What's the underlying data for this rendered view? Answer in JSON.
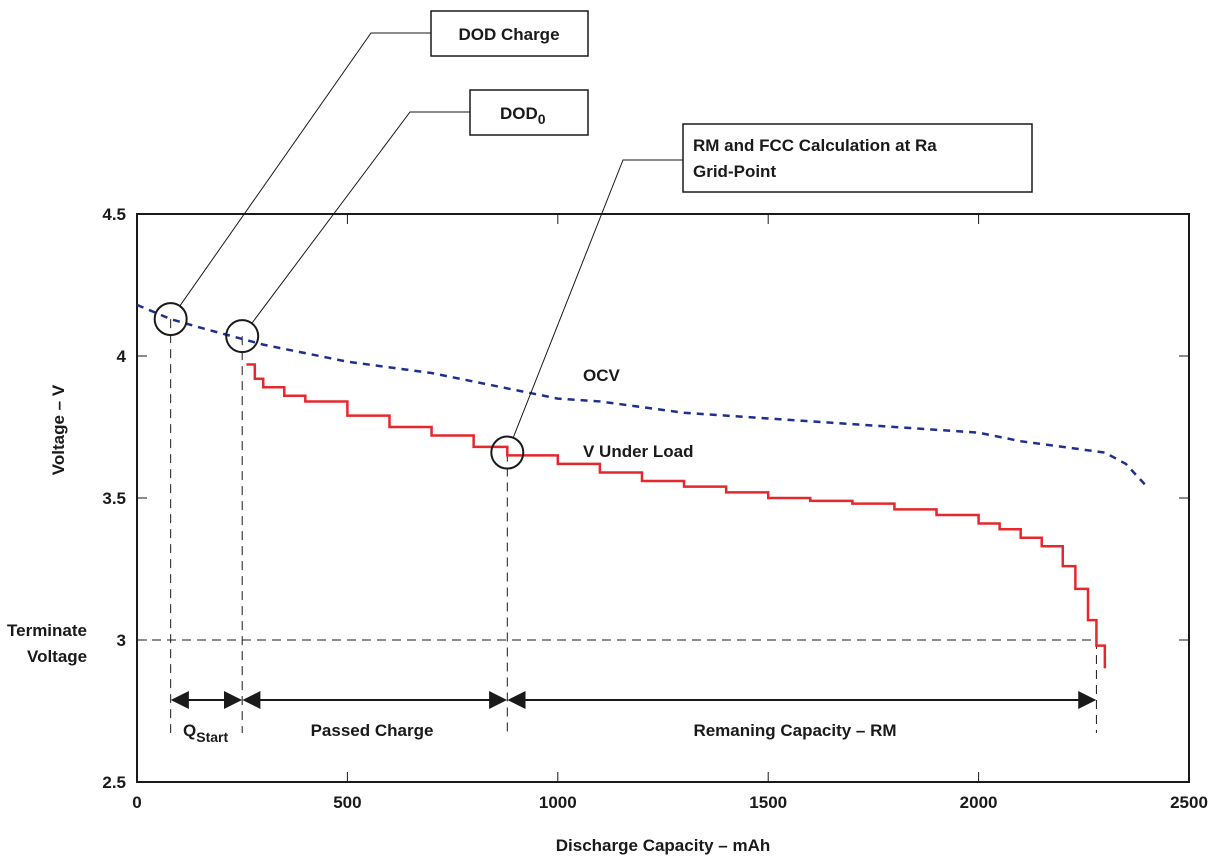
{
  "chart_data": {
    "type": "line",
    "xlabel": "Discharge Capacity – mAh",
    "ylabel": "Voltage – V",
    "xlim": [
      0,
      2500
    ],
    "ylim": [
      2.5,
      4.5
    ],
    "xticks": [
      "0",
      "500",
      "1000",
      "1500",
      "2000",
      "2500"
    ],
    "yticks": [
      "2.5",
      "3",
      "3.5",
      "4",
      "4.5"
    ],
    "grid": false,
    "series": [
      {
        "name": "OCV",
        "color": "#1f2f8f",
        "style": "dashed",
        "x": [
          0,
          80,
          150,
          250,
          300,
          400,
          500,
          600,
          700,
          800,
          900,
          1000,
          1100,
          1200,
          1300,
          1400,
          1500,
          1600,
          1700,
          1800,
          1900,
          2000,
          2100,
          2200,
          2300,
          2350,
          2400
        ],
        "y": [
          4.18,
          4.13,
          4.1,
          4.06,
          4.04,
          4.01,
          3.98,
          3.96,
          3.94,
          3.91,
          3.88,
          3.85,
          3.84,
          3.82,
          3.8,
          3.79,
          3.78,
          3.77,
          3.76,
          3.75,
          3.74,
          3.73,
          3.7,
          3.68,
          3.66,
          3.62,
          3.54
        ]
      },
      {
        "name": "V Under Load",
        "color": "#e4282d",
        "style": "solid",
        "x": [
          260,
          280,
          300,
          350,
          400,
          500,
          600,
          700,
          800,
          880,
          1000,
          1100,
          1200,
          1300,
          1400,
          1500,
          1600,
          1700,
          1800,
          1900,
          2000,
          2050,
          2100,
          2150,
          2200,
          2230,
          2260,
          2280,
          2300
        ],
        "y": [
          3.97,
          3.92,
          3.89,
          3.86,
          3.84,
          3.79,
          3.75,
          3.72,
          3.68,
          3.65,
          3.62,
          3.59,
          3.56,
          3.54,
          3.52,
          3.5,
          3.49,
          3.48,
          3.46,
          3.44,
          3.41,
          3.39,
          3.36,
          3.33,
          3.26,
          3.18,
          3.07,
          2.98,
          2.9
        ]
      }
    ],
    "reference_lines": {
      "terminate_voltage": 3.0,
      "q_start_x": 80,
      "dod0_x": 250,
      "ra_x": 880,
      "end_x": 2280
    },
    "callouts": [
      {
        "id": "dod-charge",
        "text": "DOD Charge",
        "x": 80,
        "y": 4.13
      },
      {
        "id": "dod0",
        "text": "DOD",
        "sub": "0",
        "x": 250,
        "y": 4.07
      },
      {
        "id": "ra-point",
        "line1": "RM and FCC Calculation at Ra",
        "line2": "Grid-Point",
        "x": 880,
        "y": 3.66
      }
    ],
    "annotations": {
      "ocv_label": "OCV",
      "load_label": "V Under Load",
      "terminate_line1": "Terminate",
      "terminate_line2": "Voltage",
      "q_start_main": "Q",
      "q_start_sub": "Start",
      "passed_charge": "Passed Charge",
      "remaining_capacity": "Remaning Capacity – RM"
    }
  }
}
